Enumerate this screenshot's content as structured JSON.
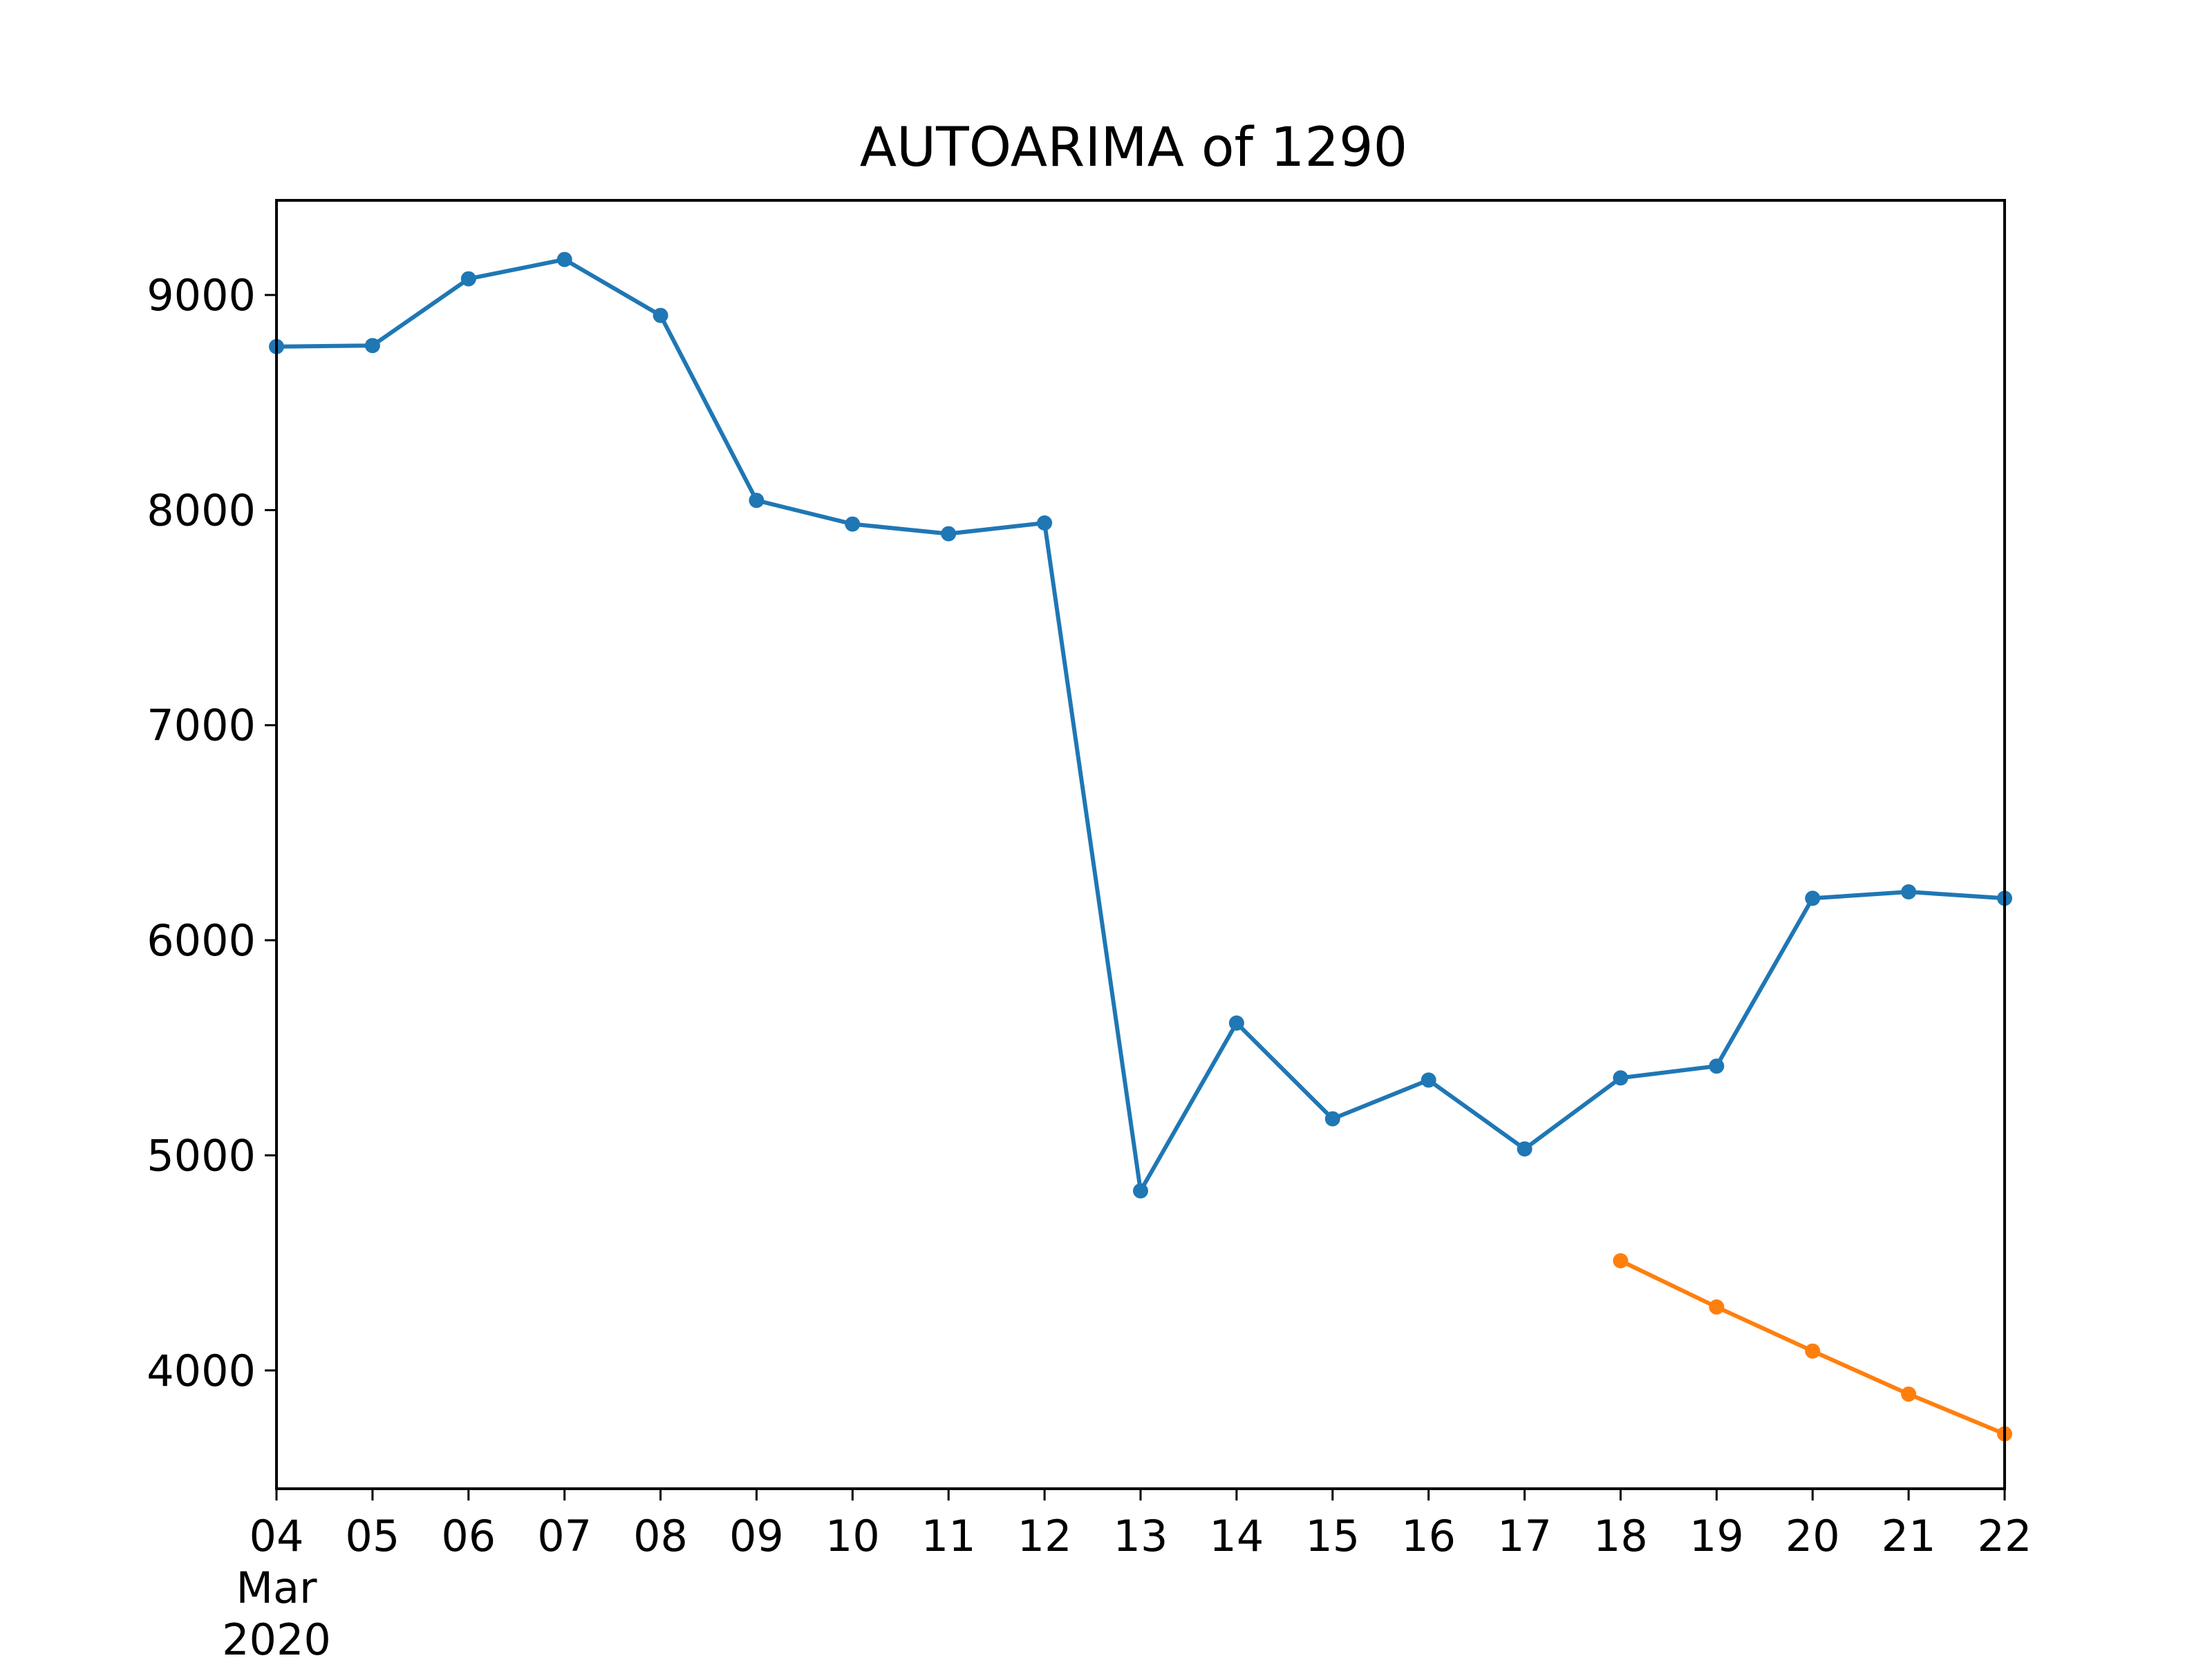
{
  "chart_data": {
    "type": "line",
    "title": "AUTOARIMA of 1290",
    "xlabel": "",
    "ylabel": "",
    "x": [
      "2020-03-04",
      "2020-03-05",
      "2020-03-06",
      "2020-03-07",
      "2020-03-08",
      "2020-03-09",
      "2020-03-10",
      "2020-03-11",
      "2020-03-12",
      "2020-03-13",
      "2020-03-14",
      "2020-03-15",
      "2020-03-16",
      "2020-03-17",
      "2020-03-18",
      "2020-03-19",
      "2020-03-20",
      "2020-03-21",
      "2020-03-22"
    ],
    "x_tick_labels": [
      "04",
      "05",
      "06",
      "07",
      "08",
      "09",
      "10",
      "11",
      "12",
      "13",
      "14",
      "15",
      "16",
      "17",
      "18",
      "19",
      "20",
      "21",
      "22"
    ],
    "x_tick_sublabels": [
      "Mar",
      "2020"
    ],
    "y_ticks": [
      4000,
      5000,
      6000,
      7000,
      8000,
      9000
    ],
    "ylim": [
      3450,
      9440
    ],
    "grid": false,
    "series": [
      {
        "color": "#1f77b4",
        "x": [
          "2020-03-04",
          "2020-03-05",
          "2020-03-06",
          "2020-03-07",
          "2020-03-08",
          "2020-03-09",
          "2020-03-10",
          "2020-03-11",
          "2020-03-12",
          "2020-03-13",
          "2020-03-14",
          "2020-03-15",
          "2020-03-16",
          "2020-03-17",
          "2020-03-18",
          "2020-03-19",
          "2020-03-20",
          "2020-03-21",
          "2020-03-22"
        ],
        "values": [
          8760,
          8765,
          9075,
          9165,
          8905,
          8045,
          7935,
          7890,
          7940,
          4835,
          5615,
          5170,
          5350,
          5030,
          5360,
          5415,
          6195,
          6225,
          6195
        ]
      },
      {
        "color": "#ff7f0e",
        "x": [
          "2020-03-18",
          "2020-03-19",
          "2020-03-20",
          "2020-03-21",
          "2020-03-22"
        ],
        "values": [
          4510,
          4295,
          4090,
          3890,
          3705
        ]
      }
    ]
  }
}
